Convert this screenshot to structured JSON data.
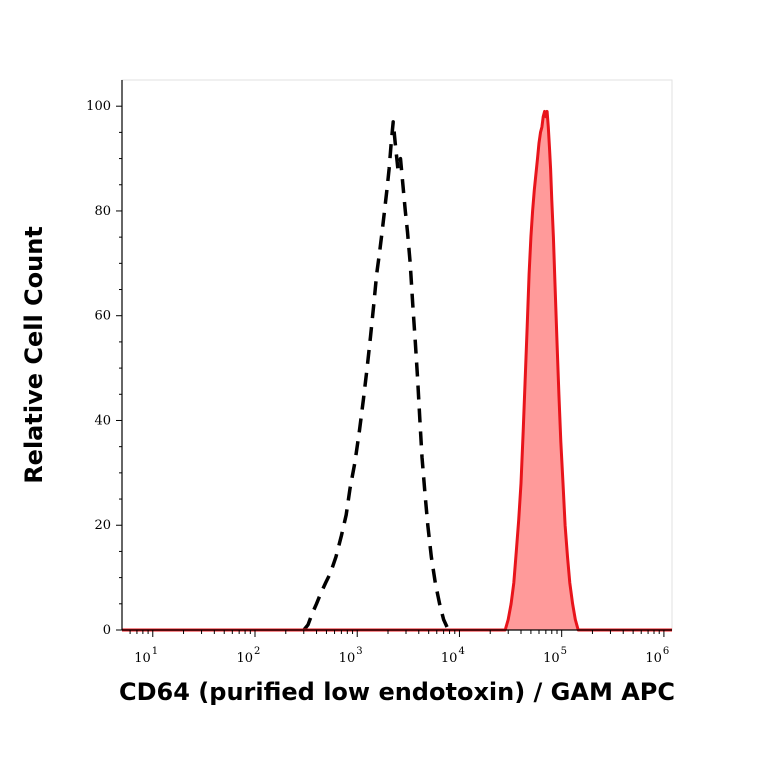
{
  "chart_data": {
    "type": "area",
    "xlabel": "CD64 (purified low endotoxin) / GAM APC",
    "ylabel": "Relative Cell Count",
    "x_scale": "log",
    "xlim": [
      5,
      1200000
    ],
    "ylim": [
      0,
      105
    ],
    "x_ticks": [
      {
        "base": "10",
        "exp": "1",
        "value": 10
      },
      {
        "base": "10",
        "exp": "2",
        "value": 100
      },
      {
        "base": "10",
        "exp": "3",
        "value": 1000
      },
      {
        "base": "10",
        "exp": "4",
        "value": 10000
      },
      {
        "base": "10",
        "exp": "5",
        "value": 100000
      },
      {
        "base": "10",
        "exp": "6",
        "value": 1000000
      }
    ],
    "y_ticks": [
      "0",
      "20",
      "40",
      "60",
      "80",
      "100"
    ],
    "grid": false,
    "legend": "none",
    "series": [
      {
        "style": "dashed",
        "color": "#000000",
        "fill": "none",
        "points": [
          [
            300,
            0
          ],
          [
            330,
            1
          ],
          [
            360,
            3
          ],
          [
            400,
            5
          ],
          [
            440,
            7
          ],
          [
            490,
            9
          ],
          [
            550,
            11
          ],
          [
            620,
            14
          ],
          [
            700,
            18
          ],
          [
            780,
            22
          ],
          [
            850,
            27
          ],
          [
            950,
            32
          ],
          [
            1050,
            38
          ],
          [
            1150,
            44
          ],
          [
            1250,
            50
          ],
          [
            1350,
            56
          ],
          [
            1450,
            62
          ],
          [
            1550,
            68
          ],
          [
            1650,
            72
          ],
          [
            1750,
            76
          ],
          [
            1850,
            80
          ],
          [
            1950,
            84
          ],
          [
            2050,
            88
          ],
          [
            2150,
            93
          ],
          [
            2250,
            97
          ],
          [
            2350,
            93
          ],
          [
            2500,
            88
          ],
          [
            2650,
            90
          ],
          [
            2800,
            85
          ],
          [
            2950,
            80
          ],
          [
            3100,
            76
          ],
          [
            3300,
            70
          ],
          [
            3500,
            62
          ],
          [
            3700,
            55
          ],
          [
            3900,
            48
          ],
          [
            4100,
            40
          ],
          [
            4300,
            33
          ],
          [
            4600,
            26
          ],
          [
            4900,
            20
          ],
          [
            5300,
            14
          ],
          [
            5800,
            9
          ],
          [
            6400,
            5
          ],
          [
            7000,
            2
          ],
          [
            7800,
            0
          ]
        ]
      },
      {
        "style": "solid",
        "color": "#e8141b",
        "fill": "#ff9a9a",
        "points": [
          [
            5,
            0
          ],
          [
            28000,
            0
          ],
          [
            30000,
            2
          ],
          [
            32000,
            5
          ],
          [
            34000,
            9
          ],
          [
            36000,
            15
          ],
          [
            38000,
            21
          ],
          [
            40000,
            28
          ],
          [
            42000,
            38
          ],
          [
            44000,
            48
          ],
          [
            46000,
            58
          ],
          [
            48000,
            68
          ],
          [
            50000,
            75
          ],
          [
            52000,
            80
          ],
          [
            54000,
            84
          ],
          [
            56000,
            87
          ],
          [
            58000,
            90
          ],
          [
            60000,
            93
          ],
          [
            62000,
            95
          ],
          [
            64000,
            96
          ],
          [
            66000,
            98
          ],
          [
            68000,
            99
          ],
          [
            70000,
            98
          ],
          [
            72000,
            99
          ],
          [
            74000,
            96
          ],
          [
            76000,
            92
          ],
          [
            78000,
            88
          ],
          [
            80000,
            82
          ],
          [
            83000,
            75
          ],
          [
            86000,
            66
          ],
          [
            90000,
            55
          ],
          [
            94000,
            45
          ],
          [
            98000,
            36
          ],
          [
            103000,
            28
          ],
          [
            108000,
            20
          ],
          [
            114000,
            14
          ],
          [
            120000,
            9
          ],
          [
            128000,
            5
          ],
          [
            136000,
            2
          ],
          [
            145000,
            0
          ],
          [
            1200000,
            0
          ]
        ]
      }
    ]
  }
}
